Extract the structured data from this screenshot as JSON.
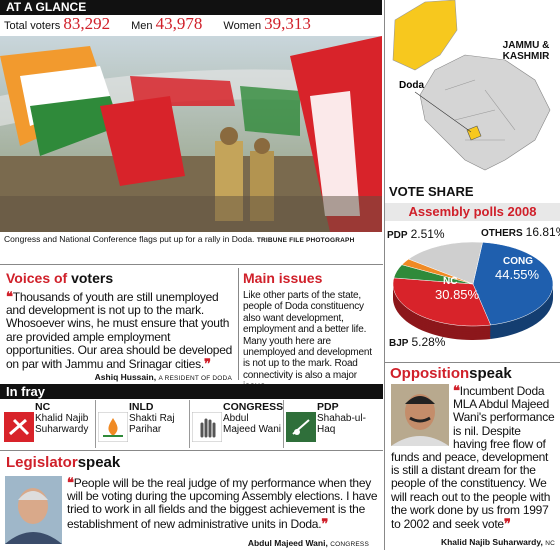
{
  "header": {
    "title": "AT A GLANCE"
  },
  "stats": [
    {
      "label": "Total voters",
      "value": "83,292"
    },
    {
      "label": "Men",
      "value": "43,978"
    },
    {
      "label": "Women",
      "value": "39,313"
    }
  ],
  "photo": {
    "caption": "Congress and National Conference flags put up for a rally in Doda.",
    "credit": "TRIBUNE FILE PHOTOGRAPH"
  },
  "map": {
    "state": "JAMMU & KASHMIR",
    "district": "Doda"
  },
  "voices": {
    "title_red": "Voices of",
    "title_black": "voters",
    "quote_open": "❝",
    "quote_close": "❞",
    "quote": "Thousands of youth are still unemployed and development is not up to the mark. Whosoever wins, he must ensure that youth are provided ample employment opportunities. Our area should be developed on par with Jammu and Srinagar cities.",
    "author": "Ashiq Hussain,",
    "author_role": "A RESIDENT OF DODA"
  },
  "issues": {
    "title": "Main issues",
    "text": "Like other parts of the state, people of Doda constituency also want development, employment and a better life. Many youth here are unemployed and development is not up to the mark. Road connectivity is also a major issue."
  },
  "in_fray": {
    "title": "In fray",
    "candidates": [
      {
        "party": "NC",
        "name": "Khalid Najib Suharwardy"
      },
      {
        "party": "INLD",
        "name": "Shakti Raj Parihar"
      },
      {
        "party": "CONGRESS",
        "name": "Abdul Majeed Wani"
      },
      {
        "party": "PDP",
        "name": "Shahab-ul-Haq"
      }
    ]
  },
  "legislator": {
    "title_red": "Legislator",
    "title_black": "speak",
    "quote_open": "❝",
    "quote_close": "❞",
    "quote": "People will be the real judge of my performance when they will be voting during the upcoming Assembly elections. I have tried to work in all fields and the biggest achievement is the establishment of new administrative units in Doda.",
    "author": "Abdul Majeed Wani,",
    "author_role": "CONGRESS"
  },
  "opposition": {
    "title_red": "Opposition",
    "title_black": "speak",
    "quote_open": "❝",
    "quote_close": "❞",
    "quote": "Incumbent Doda MLA Abdul Majeed Wani's performance is nil. Despite having free flow of funds and peace, development is still a distant dream for the people of the constituency. We will reach out to the people with the work done by us from 1997 to 2002 and seek vote",
    "author": "Khalid Najib Suharwardy,",
    "author_role": "NC"
  },
  "chart_data": {
    "type": "pie",
    "title": "VOTE SHARE",
    "subtitle": "Assembly polls 2008",
    "categories": [
      "CONG",
      "NC",
      "BJP",
      "PDP",
      "OTHERS"
    ],
    "values": [
      44.55,
      30.85,
      5.28,
      2.51,
      16.81
    ],
    "value_labels": [
      "44.55%",
      "30.85%",
      "5.28%",
      "2.51%",
      "16.81%"
    ],
    "colors": [
      "#1f5fae",
      "#d8232a",
      "#2f8a3a",
      "#f08a24",
      "#cfcfcf"
    ]
  }
}
